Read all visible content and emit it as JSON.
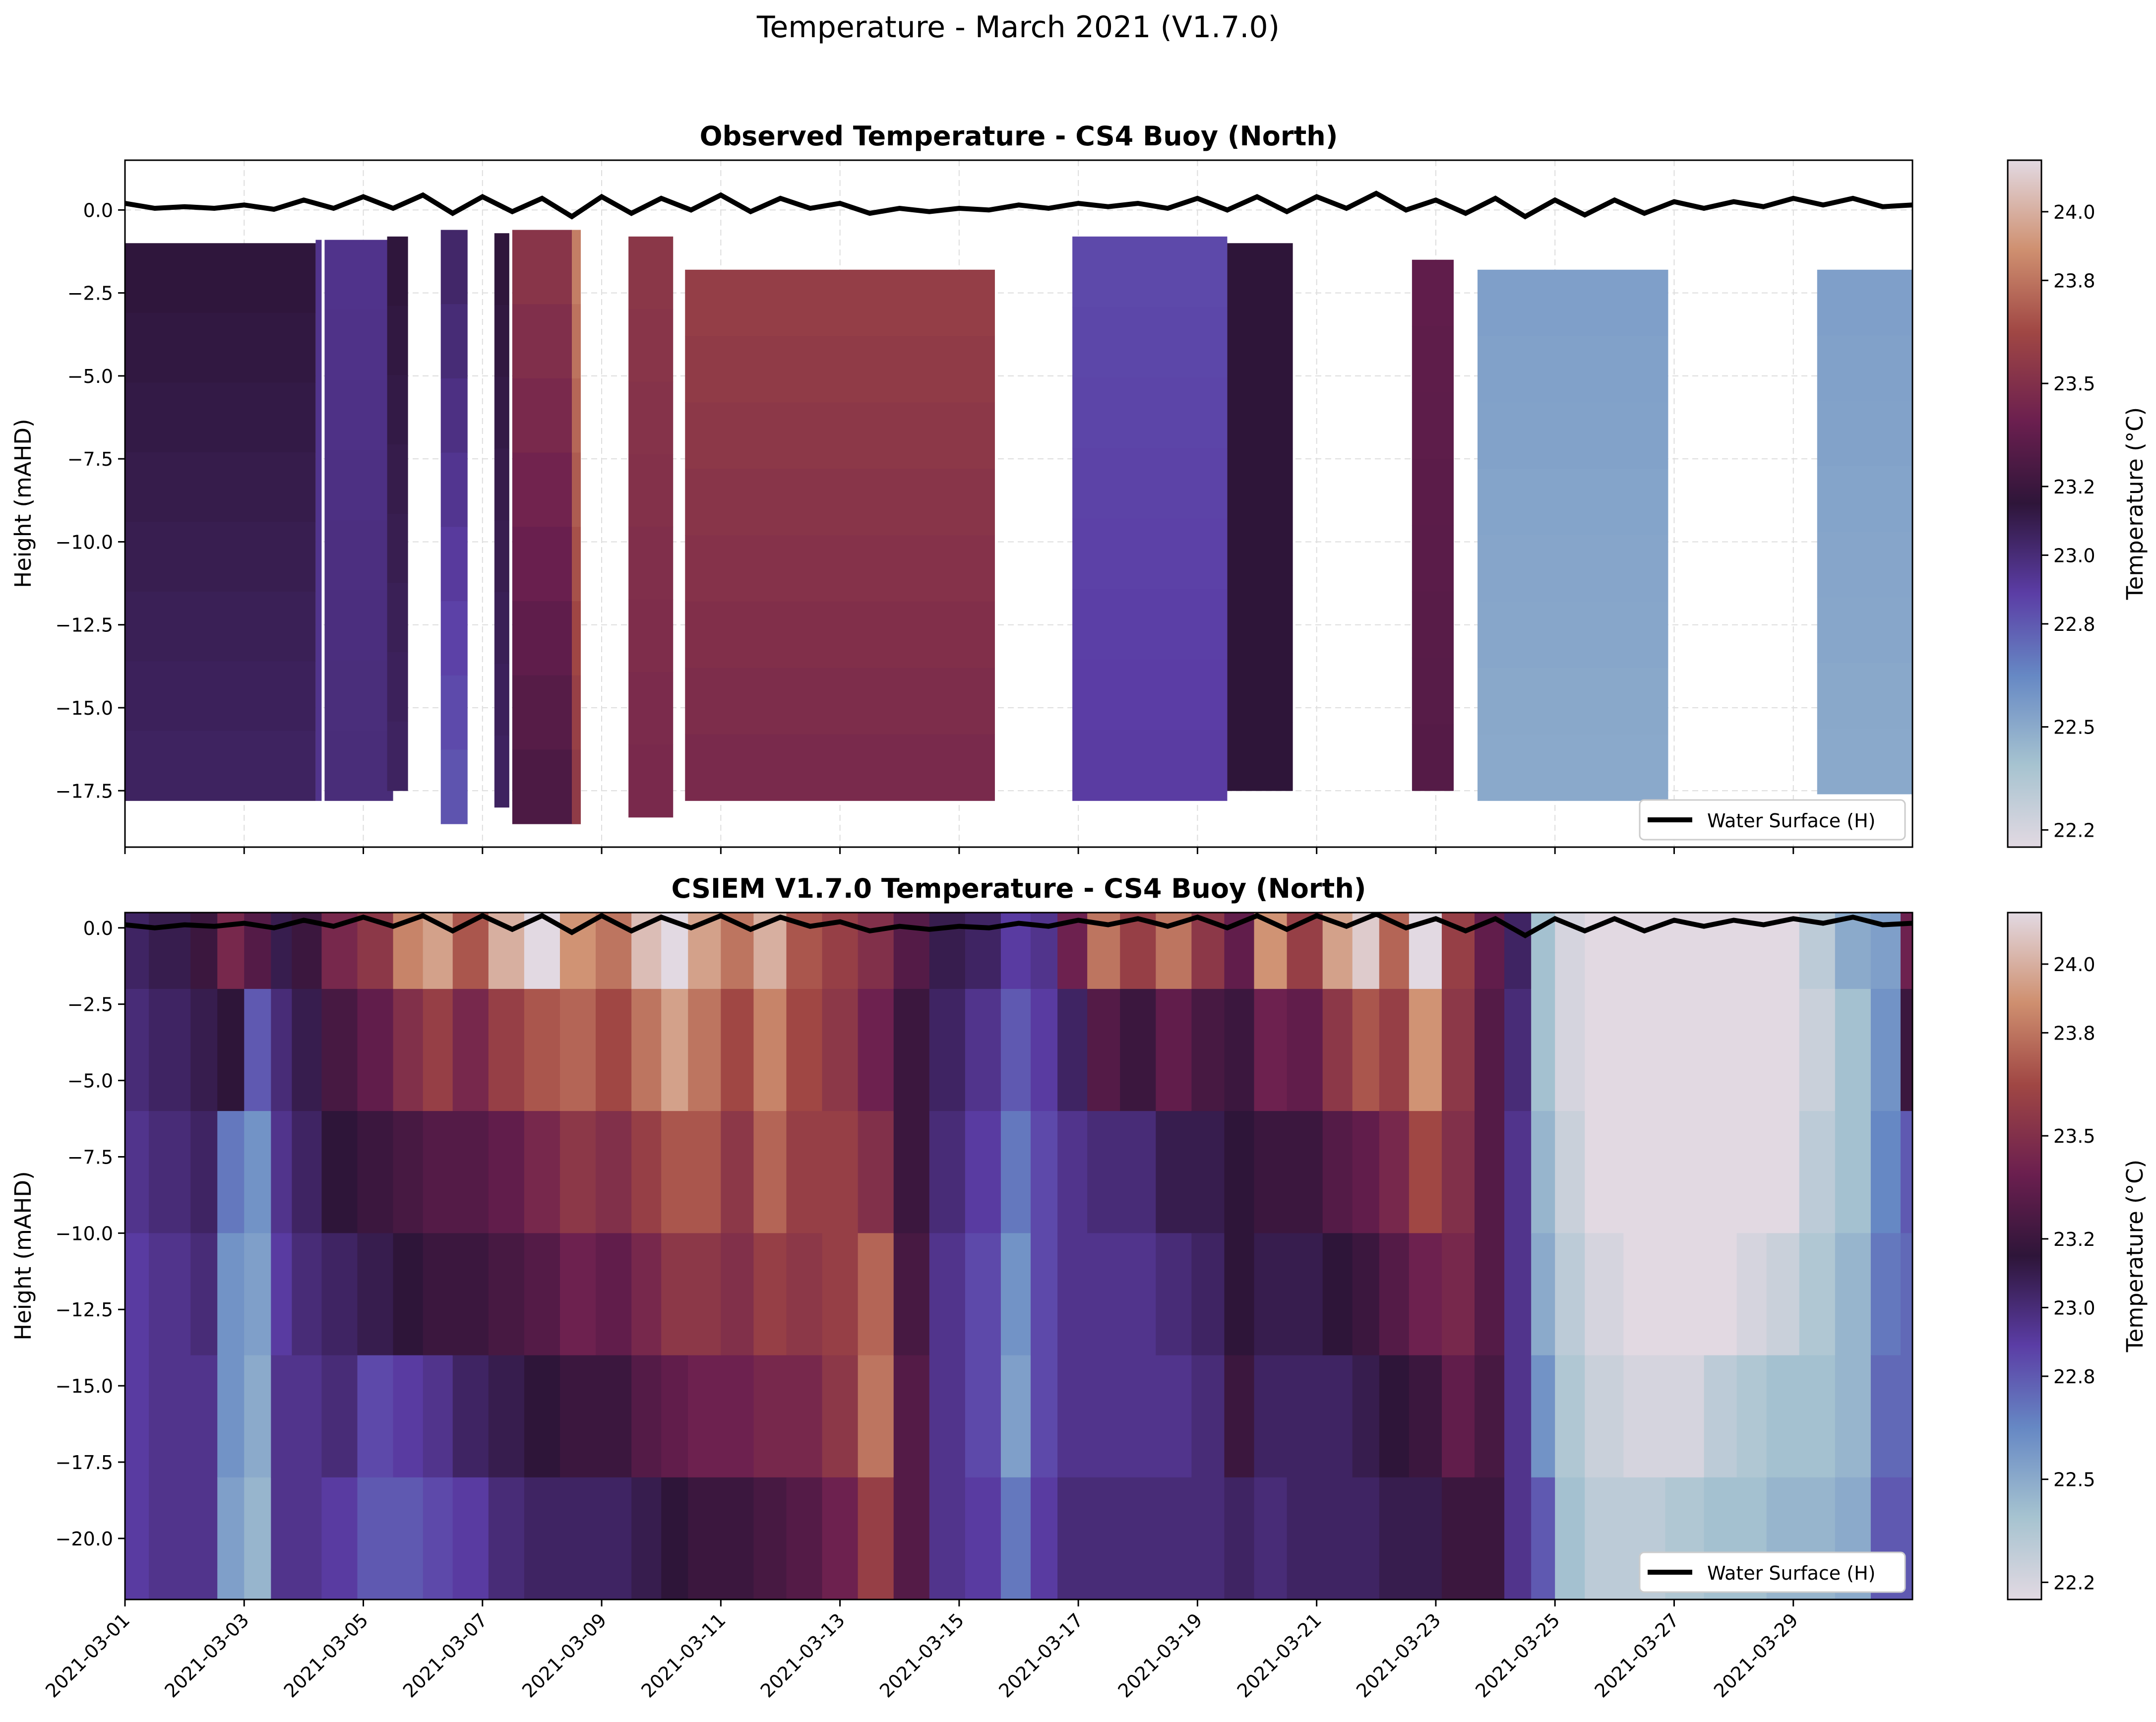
{
  "figure": {
    "suptitle": "Temperature - March 2021 (V1.7.0)"
  },
  "colormap": {
    "name": "twilight_shifted",
    "stops": [
      [
        0.0,
        "#e2d9e2"
      ],
      [
        0.12,
        "#a6c3d0"
      ],
      [
        0.25,
        "#6688c4"
      ],
      [
        0.37,
        "#5b3da5"
      ],
      [
        0.5,
        "#2e1539"
      ],
      [
        0.62,
        "#6b1f4f"
      ],
      [
        0.75,
        "#a04744"
      ],
      [
        0.87,
        "#cf9070"
      ],
      [
        1.0,
        "#e2d9e2"
      ]
    ]
  },
  "chart_data": [
    {
      "type": "heatmap",
      "title": "Observed Temperature - CS4 Buoy (North)",
      "ylabel": "Height (mAHD)",
      "xlim": [
        "2021-03-01",
        "2021-03-31"
      ],
      "ylim": [
        -19.2,
        1.5
      ],
      "yticks": [
        0.0,
        -2.5,
        -5.0,
        -7.5,
        -10.0,
        -12.5,
        -15.0,
        -17.5
      ],
      "ytick_labels": [
        "0.0",
        "−2.5",
        "−5.0",
        "−7.5",
        "−10.0",
        "−12.5",
        "−15.0",
        "−17.5"
      ],
      "xticks": [
        "2021-03-01",
        "2021-03-03",
        "2021-03-05",
        "2021-03-07",
        "2021-03-09",
        "2021-03-11",
        "2021-03-13",
        "2021-03-15",
        "2021-03-17",
        "2021-03-19",
        "2021-03-21",
        "2021-03-23",
        "2021-03-25",
        "2021-03-27",
        "2021-03-29"
      ],
      "show_xtick_labels": false,
      "grid": true,
      "colorbar": {
        "label": "Temperature (°C)",
        "vmin": 22.15,
        "vmax": 24.15,
        "ticks": [
          22.2,
          22.5,
          22.8,
          23.0,
          23.2,
          23.5,
          23.8,
          24.0
        ],
        "tick_labels": [
          "22.2",
          "22.5",
          "22.8",
          "23.0",
          "23.2",
          "23.5",
          "23.8",
          "24.0"
        ]
      },
      "legend": {
        "entries": [
          "Water Surface (H)"
        ],
        "loc": "lower right"
      },
      "water_surface": {
        "series_name": "Water Surface (H)",
        "day": [
          0,
          0.5,
          1,
          1.5,
          2,
          2.5,
          3,
          3.5,
          4,
          4.5,
          5,
          5.5,
          6,
          6.5,
          7,
          7.5,
          8,
          8.5,
          9,
          9.5,
          10,
          10.5,
          11,
          11.5,
          12,
          12.5,
          13,
          13.5,
          14,
          14.5,
          15,
          15.5,
          16,
          16.5,
          17,
          17.5,
          18,
          18.5,
          19,
          19.5,
          20,
          20.5,
          21,
          21.5,
          22,
          22.5,
          23,
          23.5,
          24,
          24.5,
          25,
          25.5,
          26,
          26.5,
          27,
          27.5,
          28,
          28.5,
          29,
          29.5,
          30
        ],
        "height": [
          0.2,
          0.05,
          0.1,
          0.05,
          0.15,
          0.02,
          0.3,
          0.05,
          0.4,
          0.05,
          0.45,
          -0.1,
          0.4,
          -0.05,
          0.35,
          -0.2,
          0.4,
          -0.1,
          0.35,
          0.0,
          0.45,
          -0.05,
          0.35,
          0.05,
          0.2,
          -0.1,
          0.05,
          -0.05,
          0.05,
          0.0,
          0.15,
          0.05,
          0.2,
          0.1,
          0.2,
          0.05,
          0.35,
          0.0,
          0.4,
          -0.05,
          0.4,
          0.05,
          0.5,
          0.0,
          0.3,
          -0.1,
          0.35,
          -0.2,
          0.3,
          -0.15,
          0.3,
          -0.1,
          0.25,
          0.05,
          0.25,
          0.1,
          0.35,
          0.15,
          0.35,
          0.1,
          0.15
        ]
      },
      "data_segments": [
        {
          "t_start": 0.0,
          "t_end": 3.2,
          "z_top": -1.0,
          "z_bottom": -17.8,
          "temp_top": 23.15,
          "temp_bottom": 23.05
        },
        {
          "t_start": 3.2,
          "t_end": 3.3,
          "z_top": -0.9,
          "z_bottom": -17.8,
          "temp_top": 22.95,
          "temp_bottom": 22.95
        },
        {
          "t_start": 3.35,
          "t_end": 4.5,
          "z_top": -0.9,
          "z_bottom": -17.8,
          "temp_top": 22.95,
          "temp_bottom": 23.0
        },
        {
          "t_start": 4.4,
          "t_end": 4.75,
          "z_top": -0.8,
          "z_bottom": -17.5,
          "temp_top": 23.15,
          "temp_bottom": 23.05
        },
        {
          "t_start": 5.3,
          "t_end": 5.75,
          "z_top": -0.6,
          "z_bottom": -18.5,
          "temp_top": 23.05,
          "temp_bottom": 22.8
        },
        {
          "t_start": 6.2,
          "t_end": 6.45,
          "z_top": -0.7,
          "z_bottom": -18.0,
          "temp_top": 23.15,
          "temp_bottom": 23.05
        },
        {
          "t_start": 6.5,
          "t_end": 7.65,
          "z_top": -0.6,
          "z_bottom": -18.5,
          "temp_top": 23.55,
          "temp_bottom": 23.25
        },
        {
          "t_start": 7.5,
          "t_end": 7.65,
          "z_top": -0.6,
          "z_bottom": -18.5,
          "temp_top": 23.85,
          "temp_bottom": 23.55
        },
        {
          "t_start": 8.45,
          "t_end": 9.2,
          "z_top": -0.8,
          "z_bottom": -18.3,
          "temp_top": 23.55,
          "temp_bottom": 23.45
        },
        {
          "t_start": 9.4,
          "t_end": 14.6,
          "z_top": -1.8,
          "z_bottom": -17.8,
          "temp_top": 23.6,
          "temp_bottom": 23.45
        },
        {
          "t_start": 15.9,
          "t_end": 18.5,
          "z_top": -0.8,
          "z_bottom": -17.8,
          "temp_top": 22.85,
          "temp_bottom": 22.9
        },
        {
          "t_start": 18.5,
          "t_end": 19.6,
          "z_top": -1.0,
          "z_bottom": -17.5,
          "temp_top": 23.15,
          "temp_bottom": 23.15
        },
        {
          "t_start": 21.6,
          "t_end": 22.3,
          "z_top": -1.5,
          "z_bottom": -17.5,
          "temp_top": 23.35,
          "temp_bottom": 23.3
        },
        {
          "t_start": 22.7,
          "t_end": 25.9,
          "z_top": -1.8,
          "z_bottom": -17.8,
          "temp_top": 22.55,
          "temp_bottom": 22.5
        },
        {
          "t_start": 28.4,
          "t_end": 30.0,
          "z_top": -1.8,
          "z_bottom": -17.6,
          "temp_top": 22.55,
          "temp_bottom": 22.5
        }
      ]
    },
    {
      "type": "heatmap",
      "title": "CSIEM V1.7.0 Temperature - CS4 Buoy (North)",
      "ylabel": "Height (mAHD)",
      "xlim": [
        "2021-03-01",
        "2021-03-31"
      ],
      "ylim": [
        -22.0,
        0.5
      ],
      "yticks": [
        0.0,
        -2.5,
        -5.0,
        -7.5,
        -10.0,
        -12.5,
        -15.0,
        -17.5,
        -20.0
      ],
      "ytick_labels": [
        "0.0",
        "−2.5",
        "−5.0",
        "−7.5",
        "−10.0",
        "−12.5",
        "−15.0",
        "−17.5",
        "−20.0"
      ],
      "xticks": [
        "2021-03-01",
        "2021-03-03",
        "2021-03-05",
        "2021-03-07",
        "2021-03-09",
        "2021-03-11",
        "2021-03-13",
        "2021-03-15",
        "2021-03-17",
        "2021-03-19",
        "2021-03-21",
        "2021-03-23",
        "2021-03-25",
        "2021-03-27",
        "2021-03-29"
      ],
      "xtick_labels": [
        "2021-03-01",
        "2021-03-03",
        "2021-03-05",
        "2021-03-07",
        "2021-03-09",
        "2021-03-11",
        "2021-03-13",
        "2021-03-15",
        "2021-03-17",
        "2021-03-19",
        "2021-03-21",
        "2021-03-23",
        "2021-03-25",
        "2021-03-27",
        "2021-03-29"
      ],
      "show_xtick_labels": true,
      "grid": false,
      "colorbar": {
        "label": "Temperature (°C)",
        "vmin": 22.15,
        "vmax": 24.15,
        "ticks": [
          22.2,
          22.5,
          22.8,
          23.0,
          23.2,
          23.5,
          23.8,
          24.0
        ],
        "tick_labels": [
          "22.2",
          "22.5",
          "22.8",
          "23.0",
          "23.2",
          "23.5",
          "23.8",
          "24.0"
        ]
      },
      "legend": {
        "entries": [
          "Water Surface (H)"
        ],
        "loc": "lower right"
      },
      "water_surface": {
        "series_name": "Water Surface (H)",
        "day": [
          0,
          0.5,
          1,
          1.5,
          2,
          2.5,
          3,
          3.5,
          4,
          4.5,
          5,
          5.5,
          6,
          6.5,
          7,
          7.5,
          8,
          8.5,
          9,
          9.5,
          10,
          10.5,
          11,
          11.5,
          12,
          12.5,
          13,
          13.5,
          14,
          14.5,
          15,
          15.5,
          16,
          16.5,
          17,
          17.5,
          18,
          18.5,
          19,
          19.5,
          20,
          20.5,
          21,
          21.5,
          22,
          22.5,
          23,
          23.5,
          24,
          24.5,
          25,
          25.5,
          26,
          26.5,
          27,
          27.5,
          28,
          28.5,
          29,
          29.5,
          30
        ],
        "height": [
          0.1,
          0.0,
          0.1,
          0.05,
          0.15,
          0.0,
          0.25,
          0.05,
          0.35,
          0.05,
          0.4,
          -0.1,
          0.4,
          -0.05,
          0.4,
          -0.15,
          0.4,
          -0.1,
          0.35,
          0.0,
          0.4,
          -0.05,
          0.35,
          0.05,
          0.2,
          -0.1,
          0.05,
          -0.05,
          0.05,
          0.0,
          0.15,
          0.05,
          0.25,
          0.1,
          0.3,
          0.05,
          0.35,
          0.0,
          0.4,
          -0.05,
          0.4,
          0.05,
          0.45,
          0.0,
          0.3,
          -0.1,
          0.3,
          -0.25,
          0.3,
          -0.1,
          0.3,
          -0.1,
          0.25,
          0.05,
          0.25,
          0.1,
          0.3,
          0.15,
          0.35,
          0.1,
          0.15
        ]
      },
      "time_days": [
        0,
        0.8,
        1.4,
        1.7,
        2.3,
        2.6,
        3.0,
        3.6,
        4.2,
        4.8,
        5.2,
        5.8,
        6.4,
        7.0,
        7.6,
        8.2,
        8.8,
        9.2,
        9.7,
        10.3,
        10.8,
        11.4,
        12.0,
        12.6,
        13.2,
        13.8,
        14.4,
        15.0,
        15.4,
        15.9,
        16.4,
        17.0,
        17.6,
        18.2,
        18.7,
        19.2,
        19.8,
        20.4,
        20.8,
        21.3,
        21.8,
        22.4,
        22.9,
        23.4,
        23.8,
        24.2,
        24.8,
        25.5,
        26.2,
        26.8,
        27.3,
        27.8,
        28.4,
        29.0,
        29.6,
        30.0
      ],
      "depth_levels": [
        0,
        -4,
        -8,
        -12,
        -16,
        -20,
        -22
      ],
      "temperature": [
        [
          23.05,
          23.0,
          22.95,
          22.9,
          22.9,
          22.9,
          22.9
        ],
        [
          23.1,
          23.05,
          23.0,
          22.95,
          22.95,
          22.95,
          22.95
        ],
        [
          23.2,
          23.1,
          23.05,
          23.0,
          22.95,
          22.95,
          22.95
        ],
        [
          23.45,
          23.15,
          22.7,
          22.6,
          22.6,
          22.55,
          22.55
        ],
        [
          23.3,
          22.8,
          22.6,
          22.55,
          22.5,
          22.45,
          22.45
        ],
        [
          23.1,
          23.0,
          22.95,
          22.9,
          22.95,
          22.95,
          22.95
        ],
        [
          23.2,
          23.1,
          23.05,
          23.0,
          22.95,
          22.95,
          22.95
        ],
        [
          23.45,
          23.25,
          23.15,
          23.05,
          23.0,
          22.9,
          22.9
        ],
        [
          23.55,
          23.35,
          23.2,
          23.1,
          22.85,
          22.8,
          22.8
        ],
        [
          23.85,
          23.5,
          23.25,
          23.15,
          22.9,
          22.8,
          22.8
        ],
        [
          23.95,
          23.6,
          23.3,
          23.2,
          22.95,
          22.85,
          22.85
        ],
        [
          23.7,
          23.45,
          23.3,
          23.2,
          23.05,
          22.9,
          22.9
        ],
        [
          24.0,
          23.6,
          23.35,
          23.25,
          23.1,
          23.0,
          23.0
        ],
        [
          24.15,
          23.7,
          23.45,
          23.3,
          23.15,
          23.05,
          23.05
        ],
        [
          23.9,
          23.75,
          23.55,
          23.4,
          23.2,
          23.05,
          23.05
        ],
        [
          23.8,
          23.65,
          23.5,
          23.35,
          23.2,
          23.05,
          23.05
        ],
        [
          24.05,
          23.8,
          23.6,
          23.45,
          23.3,
          23.1,
          23.1
        ],
        [
          24.15,
          23.95,
          23.7,
          23.55,
          23.35,
          23.15,
          23.15
        ],
        [
          23.95,
          23.8,
          23.7,
          23.55,
          23.4,
          23.2,
          23.2
        ],
        [
          23.8,
          23.65,
          23.55,
          23.5,
          23.4,
          23.2,
          23.2
        ],
        [
          24.0,
          23.85,
          23.75,
          23.6,
          23.45,
          23.25,
          23.25
        ],
        [
          23.7,
          23.65,
          23.6,
          23.55,
          23.45,
          23.3,
          23.3
        ],
        [
          23.6,
          23.55,
          23.6,
          23.6,
          23.55,
          23.4,
          23.4
        ],
        [
          23.5,
          23.4,
          23.5,
          23.75,
          23.8,
          23.6,
          23.6
        ],
        [
          23.3,
          23.2,
          23.2,
          23.25,
          23.3,
          23.3,
          23.3
        ],
        [
          23.1,
          23.05,
          23.0,
          22.95,
          22.95,
          22.95,
          22.95
        ],
        [
          23.05,
          22.95,
          22.9,
          22.85,
          22.85,
          22.9,
          22.9
        ],
        [
          22.9,
          22.8,
          22.7,
          22.6,
          22.55,
          22.7,
          22.7
        ],
        [
          22.95,
          22.9,
          22.85,
          22.85,
          22.85,
          22.9,
          22.9
        ],
        [
          23.4,
          23.05,
          22.95,
          22.95,
          22.95,
          23.0,
          23.0
        ],
        [
          23.8,
          23.3,
          23.0,
          22.95,
          22.95,
          23.0,
          23.0
        ],
        [
          23.6,
          23.2,
          23.0,
          22.95,
          22.95,
          23.0,
          23.0
        ],
        [
          23.8,
          23.35,
          23.1,
          23.0,
          22.95,
          23.0,
          23.0
        ],
        [
          23.55,
          23.25,
          23.1,
          23.05,
          23.0,
          23.0,
          23.0
        ],
        [
          23.35,
          23.2,
          23.15,
          23.15,
          23.2,
          23.05,
          23.05
        ],
        [
          23.9,
          23.4,
          23.2,
          23.1,
          23.05,
          23.0,
          23.0
        ],
        [
          23.6,
          23.35,
          23.2,
          23.1,
          23.05,
          23.05,
          23.05
        ],
        [
          23.95,
          23.55,
          23.3,
          23.15,
          23.05,
          23.05,
          23.05
        ],
        [
          24.1,
          23.7,
          23.35,
          23.2,
          23.1,
          23.05,
          23.05
        ],
        [
          23.75,
          23.6,
          23.45,
          23.3,
          23.15,
          23.1,
          23.1
        ],
        [
          24.15,
          23.9,
          23.65,
          23.4,
          23.2,
          23.1,
          23.1
        ],
        [
          23.6,
          23.55,
          23.5,
          23.45,
          23.35,
          23.2,
          23.2
        ],
        [
          23.35,
          23.3,
          23.3,
          23.3,
          23.25,
          23.2,
          23.2
        ],
        [
          23.05,
          23.0,
          22.95,
          22.95,
          22.95,
          22.95,
          22.95
        ],
        [
          22.4,
          22.4,
          22.45,
          22.5,
          22.6,
          22.8,
          22.8
        ],
        [
          22.2,
          22.2,
          22.25,
          22.3,
          22.35,
          22.4,
          22.4
        ],
        [
          22.15,
          22.15,
          22.15,
          22.2,
          22.25,
          22.3,
          22.3
        ],
        [
          22.15,
          22.15,
          22.15,
          22.15,
          22.2,
          22.3,
          22.3
        ],
        [
          22.15,
          22.15,
          22.15,
          22.15,
          22.2,
          22.35,
          22.35
        ],
        [
          22.15,
          22.15,
          22.15,
          22.15,
          22.3,
          22.4,
          22.4
        ],
        [
          22.15,
          22.15,
          22.15,
          22.2,
          22.35,
          22.4,
          22.4
        ],
        [
          22.15,
          22.15,
          22.15,
          22.25,
          22.4,
          22.45,
          22.45
        ],
        [
          22.3,
          22.25,
          22.3,
          22.35,
          22.4,
          22.45,
          22.45
        ],
        [
          22.5,
          22.4,
          22.4,
          22.45,
          22.45,
          22.5,
          22.5
        ],
        [
          22.55,
          22.6,
          22.65,
          22.7,
          22.75,
          22.8,
          22.8
        ],
        [
          23.4,
          23.2,
          22.8,
          22.75,
          22.75,
          22.8,
          22.8
        ]
      ]
    }
  ]
}
